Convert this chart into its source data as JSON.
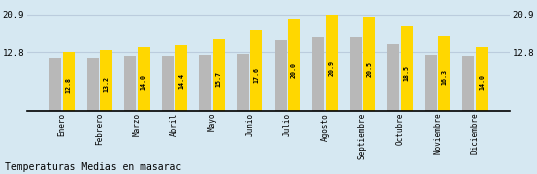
{
  "months": [
    "Enero",
    "Febrero",
    "Marzo",
    "Abril",
    "Mayo",
    "Junio",
    "Julio",
    "Agosto",
    "Septiembre",
    "Octubre",
    "Noviembre",
    "Diciembre"
  ],
  "yellow_values": [
    12.8,
    13.2,
    14.0,
    14.4,
    15.7,
    17.6,
    20.0,
    20.9,
    20.5,
    18.5,
    16.3,
    14.0
  ],
  "gray_values": [
    11.5,
    11.5,
    12.0,
    12.0,
    12.2,
    12.5,
    15.5,
    16.2,
    16.0,
    14.5,
    12.2,
    12.0
  ],
  "yellow_color": "#FFD700",
  "gray_color": "#B8B8B8",
  "bg_color": "#D6E8F2",
  "yticks": [
    12.8,
    20.9
  ],
  "ylim": [
    0,
    23.5
  ],
  "yline_color": "#BBCCDD",
  "title": "Temperaturas Medias en masarac",
  "title_fontsize": 7.0,
  "bar_value_fontsize": 4.8,
  "bar_width": 0.32,
  "bar_gap": 0.04
}
